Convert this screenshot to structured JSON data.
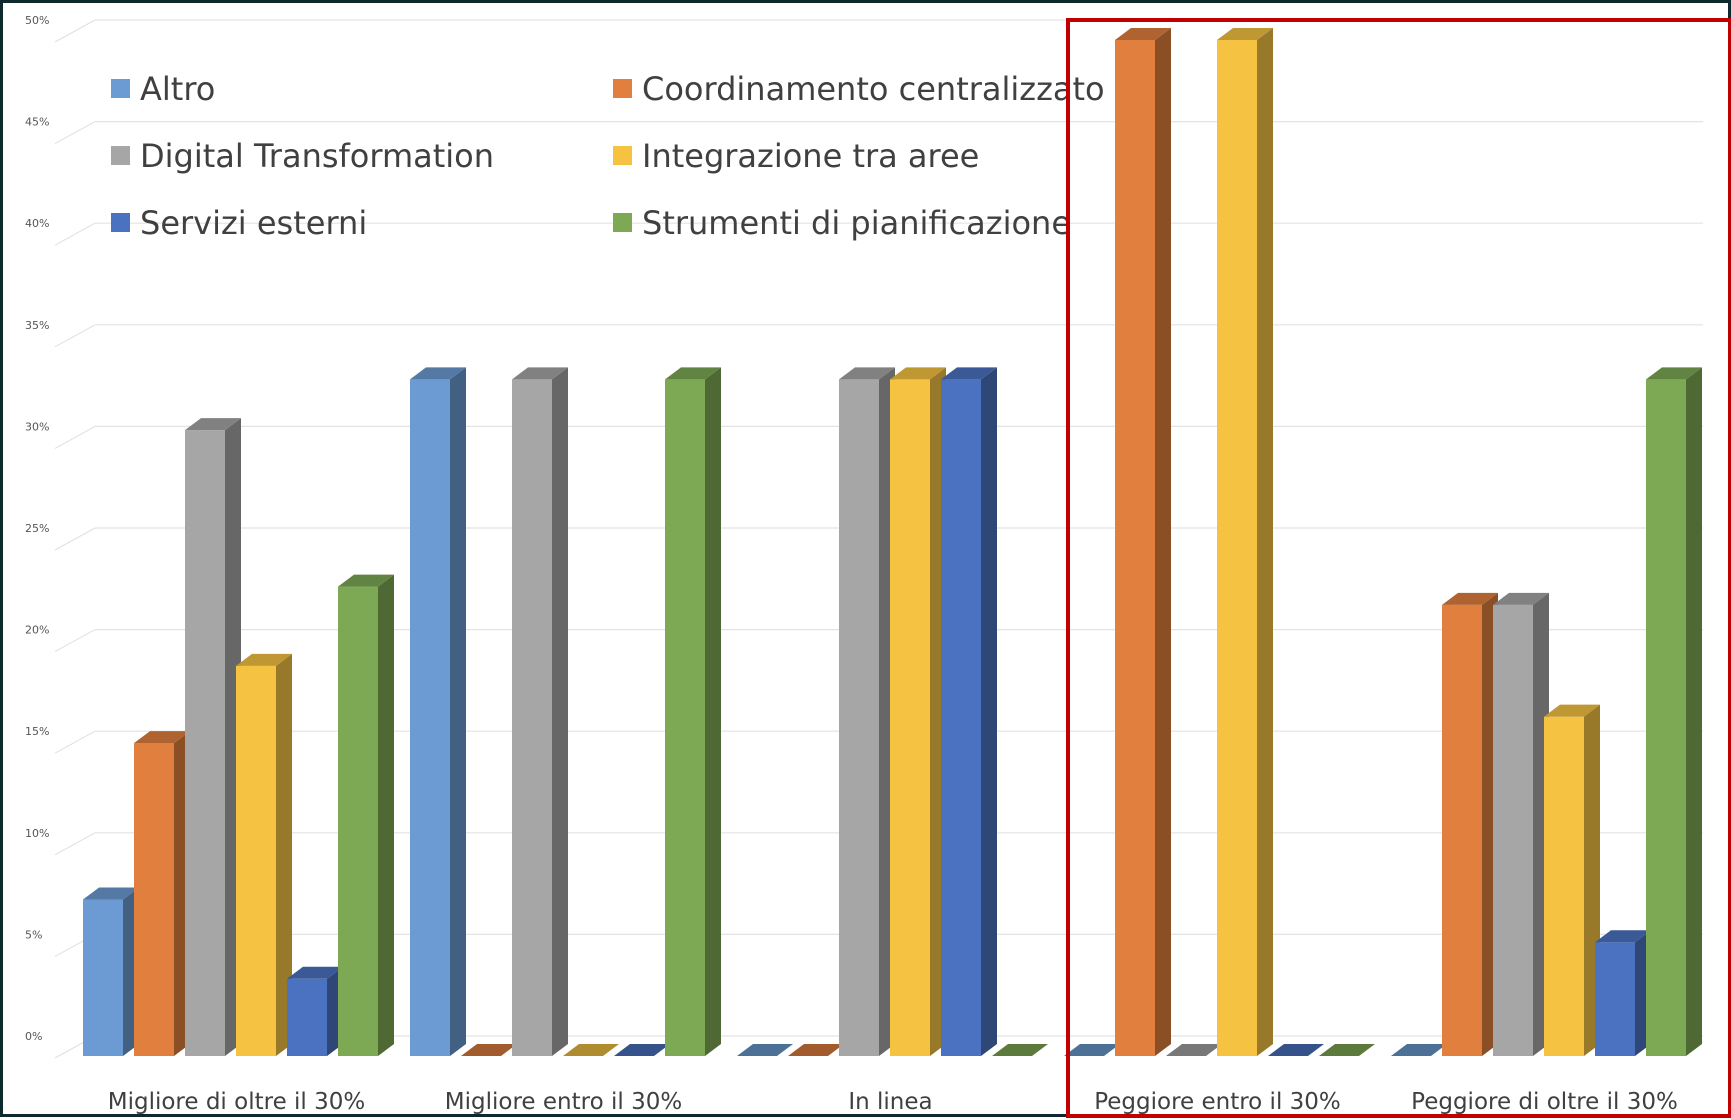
{
  "chart_data": {
    "type": "bar",
    "categories": [
      "Migliore di oltre il 30%",
      "Migliore entro il 30%",
      "In linea",
      "Peggiore entro il 30%",
      "Peggiore di oltre il 30%"
    ],
    "series": [
      {
        "name": "Altro",
        "color": "#6b9bd2",
        "values": [
          7.7,
          33.3,
          0,
          0,
          0
        ]
      },
      {
        "name": "Coordinamento centralizzato",
        "color": "#e07f3e",
        "values": [
          15.4,
          0,
          0,
          50,
          22.2
        ]
      },
      {
        "name": "Digital Transformation",
        "color": "#a6a6a6",
        "values": [
          30.8,
          33.3,
          33.3,
          0,
          22.2
        ]
      },
      {
        "name": "Integrazione tra aree",
        "color": "#f5c242",
        "values": [
          19.2,
          0,
          33.3,
          50,
          16.7
        ]
      },
      {
        "name": "Servizi esterni",
        "color": "#4a72c0",
        "values": [
          3.8,
          0,
          33.3,
          0,
          5.6
        ]
      },
      {
        "name": "Strumenti di pianificazione",
        "color": "#7ea954",
        "values": [
          23.1,
          33.3,
          0,
          0,
          33.3
        ]
      }
    ],
    "y_ticks": [
      "0%",
      "5%",
      "10%",
      "15%",
      "20%",
      "25%",
      "30%",
      "35%",
      "40%",
      "45%",
      "50%"
    ],
    "ylim": [
      0,
      50
    ],
    "grid": true,
    "legend": "top-left",
    "highlighted_categories": [
      "Peggiore entro il 30%",
      "Peggiore di oltre il 30%"
    ],
    "highlight_color": "#c00000"
  }
}
